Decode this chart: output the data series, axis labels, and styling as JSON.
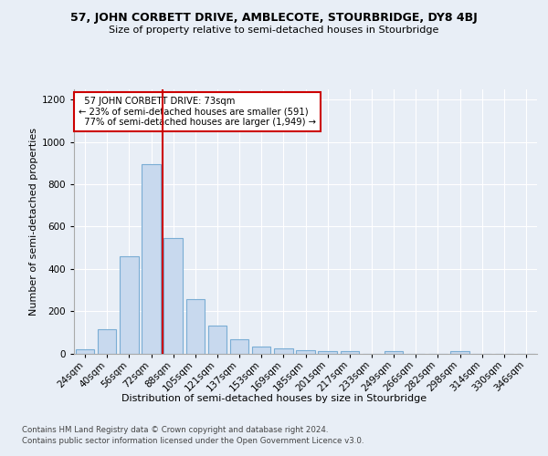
{
  "title": "57, JOHN CORBETT DRIVE, AMBLECOTE, STOURBRIDGE, DY8 4BJ",
  "subtitle": "Size of property relative to semi-detached houses in Stourbridge",
  "xlabel": "Distribution of semi-detached houses by size in Stourbridge",
  "ylabel": "Number of semi-detached properties",
  "categories": [
    "24sqm",
    "40sqm",
    "56sqm",
    "72sqm",
    "88sqm",
    "105sqm",
    "121sqm",
    "137sqm",
    "153sqm",
    "169sqm",
    "185sqm",
    "201sqm",
    "217sqm",
    "233sqm",
    "249sqm",
    "266sqm",
    "282sqm",
    "298sqm",
    "314sqm",
    "330sqm",
    "346sqm"
  ],
  "values": [
    20,
    115,
    460,
    895,
    545,
    255,
    130,
    65,
    32,
    22,
    15,
    10,
    12,
    0,
    10,
    0,
    0,
    10,
    0,
    0,
    0
  ],
  "bar_color": "#c8d9ee",
  "bar_edge_color": "#7aadd4",
  "highlight_label": "57 JOHN CORBETT DRIVE: 73sqm",
  "pct_smaller": 23,
  "n_smaller": 591,
  "pct_larger": 77,
  "n_larger": 1949,
  "vline_color": "#cc0000",
  "box_edge_color": "#cc0000",
  "ylim": [
    0,
    1250
  ],
  "yticks": [
    0,
    200,
    400,
    600,
    800,
    1000,
    1200
  ],
  "footer1": "Contains HM Land Registry data © Crown copyright and database right 2024.",
  "footer2": "Contains public sector information licensed under the Open Government Licence v3.0.",
  "bg_color": "#e8eef6",
  "plot_bg_color": "#e8eef6",
  "grid_color": "#ffffff",
  "vline_x_idx": 3.5
}
